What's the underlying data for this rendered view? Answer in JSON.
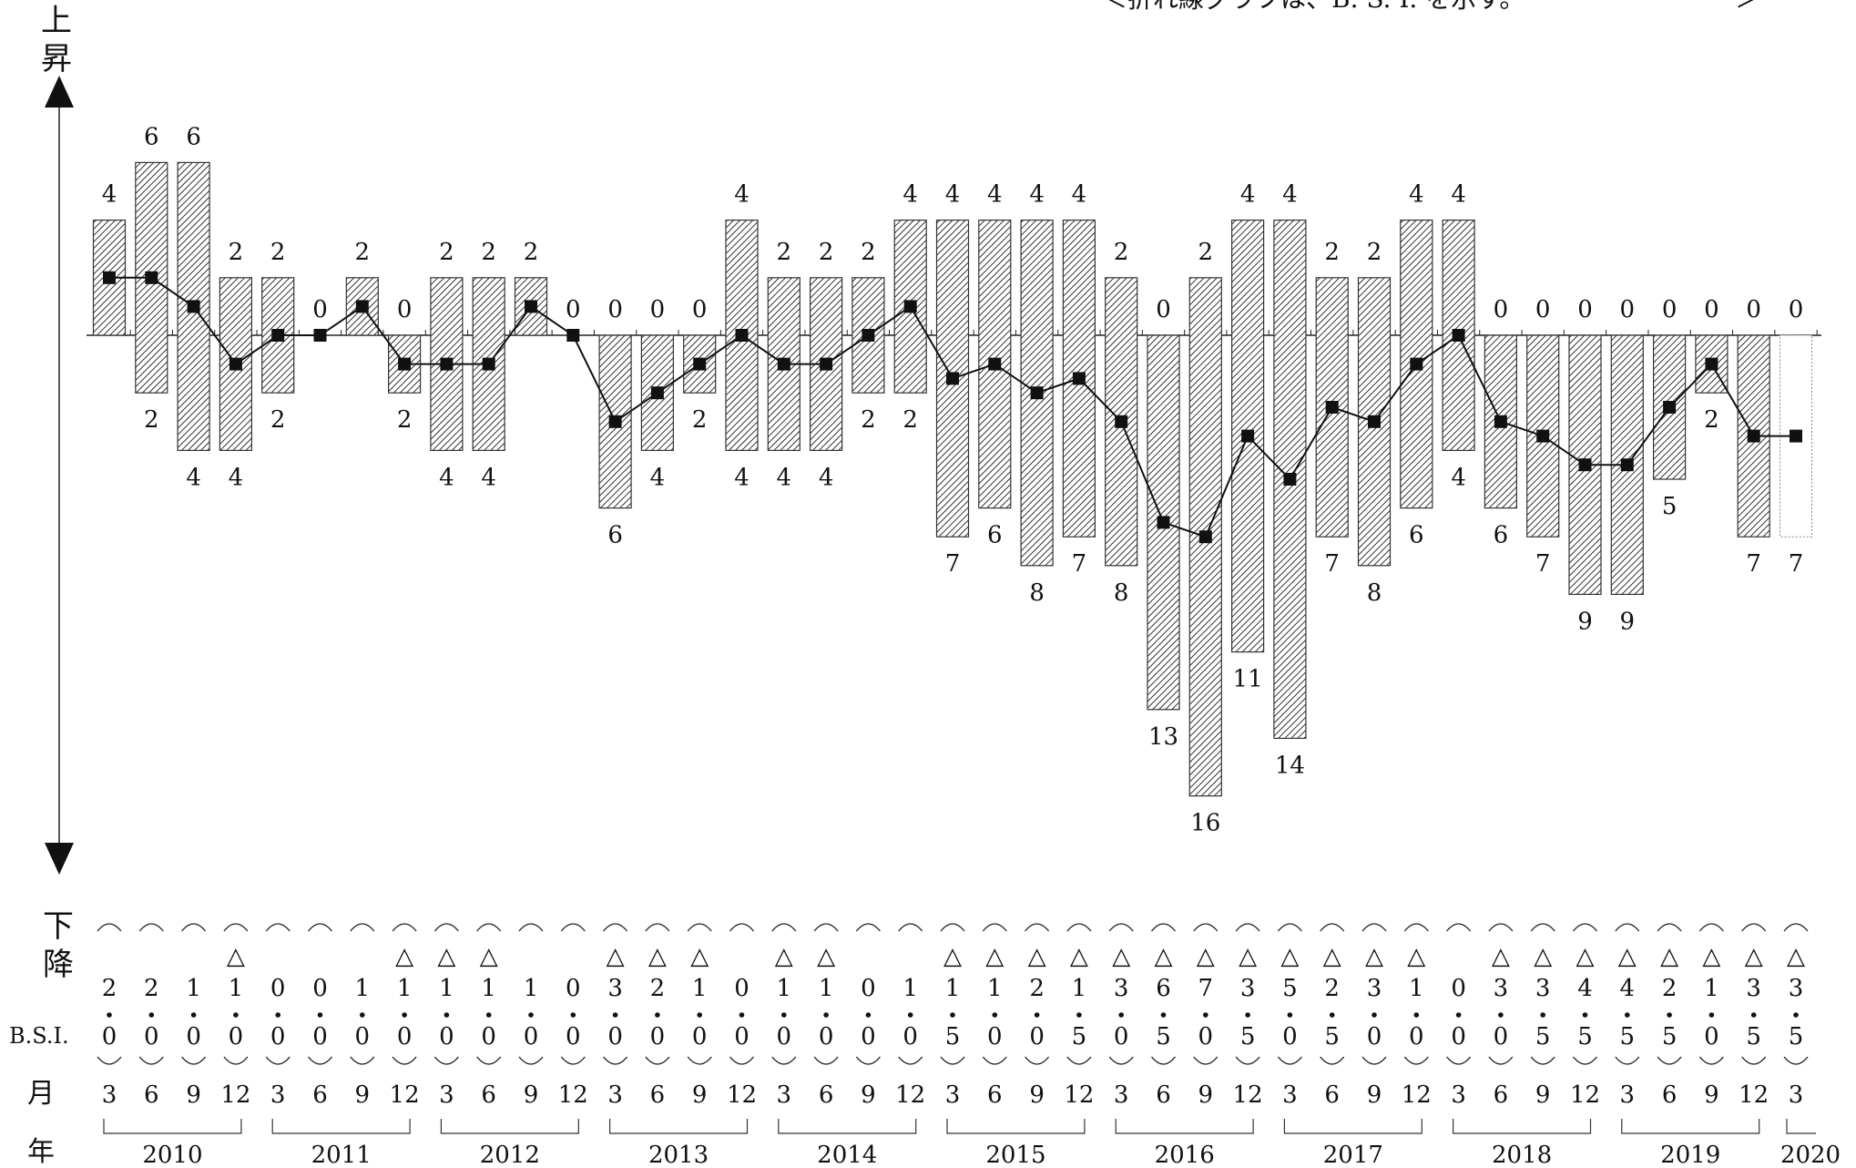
{
  "header": {
    "note": "＜折れ線グラフは、B. S. I. を示す。",
    "note_close": "＞"
  },
  "side_labels": {
    "up": "上昇",
    "down": "下降",
    "bsi": "B.S.I.",
    "month": "月",
    "year": "年"
  },
  "chart_data": {
    "type": "bar",
    "categories": [
      "3",
      "6",
      "9",
      "12",
      "3",
      "6",
      "9",
      "12",
      "3",
      "6",
      "9",
      "12",
      "3",
      "6",
      "9",
      "12",
      "3",
      "6",
      "9",
      "12",
      "3",
      "6",
      "9",
      "12",
      "3",
      "6",
      "9",
      "12",
      "3",
      "6",
      "9",
      "12",
      "3",
      "6",
      "9",
      "12",
      "3",
      "6",
      "9",
      "12",
      "3"
    ],
    "years": [
      {
        "label": "2010",
        "start": 0,
        "end": 3
      },
      {
        "label": "2011",
        "start": 4,
        "end": 7
      },
      {
        "label": "2012",
        "start": 8,
        "end": 11
      },
      {
        "label": "2013",
        "start": 12,
        "end": 15
      },
      {
        "label": "2014",
        "start": 16,
        "end": 19
      },
      {
        "label": "2015",
        "start": 20,
        "end": 23
      },
      {
        "label": "2016",
        "start": 24,
        "end": 27
      },
      {
        "label": "2017",
        "start": 28,
        "end": 31
      },
      {
        "label": "2018",
        "start": 32,
        "end": 35
      },
      {
        "label": "2019",
        "start": 36,
        "end": 39
      },
      {
        "label": "2020",
        "start": 40,
        "end": 40
      }
    ],
    "series": [
      {
        "values": [
          4,
          6,
          6,
          2,
          2,
          0,
          2,
          0,
          2,
          2,
          2,
          0,
          0,
          0,
          0,
          4,
          2,
          2,
          2,
          4,
          4,
          4,
          4,
          4,
          2,
          0,
          2,
          4,
          4,
          2,
          2,
          4,
          4,
          0,
          0,
          0,
          0,
          0,
          0,
          0,
          0
        ]
      },
      {
        "values": [
          0,
          2,
          4,
          4,
          2,
          0,
          0,
          2,
          4,
          4,
          0,
          0,
          6,
          4,
          2,
          4,
          4,
          4,
          2,
          2,
          7,
          6,
          8,
          7,
          8,
          13,
          16,
          11,
          14,
          7,
          8,
          6,
          4,
          6,
          7,
          9,
          9,
          5,
          2,
          7,
          7
        ]
      },
      {
        "values": [
          2.0,
          2.0,
          1.0,
          -1.0,
          0.0,
          0.0,
          1.0,
          -1.0,
          -1.0,
          -1.0,
          1.0,
          0.0,
          -3.0,
          -2.0,
          -1.0,
          0.0,
          -1.0,
          -1.0,
          0.0,
          1.0,
          -1.5,
          -1.0,
          -2.0,
          -1.5,
          -3.0,
          -6.5,
          -7.0,
          -3.5,
          -5.0,
          -2.5,
          -3.0,
          -1.0,
          0.0,
          -3.0,
          -3.5,
          -4.5,
          -4.5,
          -2.5,
          -1.0,
          -3.5,
          -3.5
        ]
      }
    ],
    "bsi_text": [
      "2.0",
      "2.0",
      "1.0",
      "△1.0",
      "0.0",
      "0.0",
      "1.0",
      "△1.0",
      "△1.0",
      "△1.0",
      "1.0",
      "0.0",
      "△3.0",
      "△2.0",
      "△1.0",
      "0.0",
      "△1.0",
      "△1.0",
      "0.0",
      "1.0",
      "△1.5",
      "△1.0",
      "△2.0",
      "△1.5",
      "△3.0",
      "△6.5",
      "△7.0",
      "△3.5",
      "△5.0",
      "△2.5",
      "△3.0",
      "△1.0",
      "0.0",
      "△3.0",
      "△3.5",
      "△4.5",
      "△4.5",
      "△2.5",
      "△1.0",
      "△3.5",
      "△3.5"
    ],
    "forecast_last": true,
    "grid": false
  }
}
